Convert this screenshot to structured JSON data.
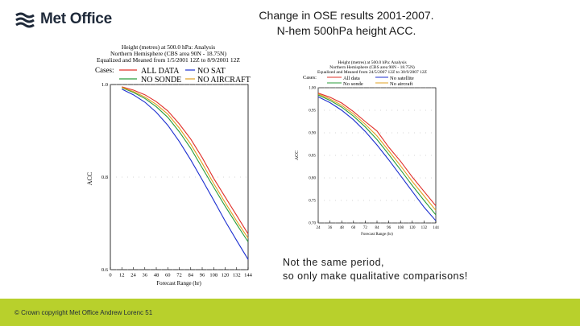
{
  "logo": {
    "text": "Met Office"
  },
  "title": {
    "line1": "Change in OSE results 2001-2007.",
    "line2": "N-hem 500hPa height ACC."
  },
  "note": {
    "line1": "Not the same period,",
    "line2": "so only make qualitative comparisons!"
  },
  "footer": {
    "text": "© Crown copyright   Met Office  Andrew Lorenc  51"
  },
  "colors": {
    "footer_bg": "#b8d02c",
    "all_data": "#e0302a",
    "no_sat": "#1c2fd0",
    "no_sonde": "#2a9e3a",
    "no_aircraft": "#e0a020"
  },
  "chart_data": [
    {
      "type": "line",
      "header": [
        "Height (metres) at 500.0 hPa:  Analysis",
        "Northern Hemisphere (CBS area 90N - 18.75N)",
        "Equalized and Meaned from 1/5/2001 12Z to 8/9/2001 12Z"
      ],
      "legend_title": "Cases:",
      "ylabel": "ACC",
      "xlabel": "Forecast Range (hr)",
      "xticks": [
        "0",
        "12",
        "24",
        "36",
        "48",
        "60",
        "72",
        "84",
        "96",
        "108",
        "120",
        "132",
        "144"
      ],
      "yticks": [
        "1.0",
        "0.8",
        "0.6"
      ],
      "xlim": [
        0,
        144
      ],
      "ylim": [
        0.6,
        1.0
      ],
      "series": [
        {
          "name": "ALL DATA",
          "color": "#e0302a",
          "x": [
            12,
            24,
            36,
            48,
            60,
            72,
            84,
            96,
            108,
            120,
            132,
            144
          ],
          "y": [
            0.995,
            0.988,
            0.978,
            0.963,
            0.943,
            0.915,
            0.882,
            0.842,
            0.797,
            0.757,
            0.717,
            0.677
          ]
        },
        {
          "name": "NO SAT",
          "color": "#1c2fd0",
          "x": [
            12,
            24,
            36,
            48,
            60,
            72,
            84,
            96,
            108,
            120,
            132,
            144
          ],
          "y": [
            0.99,
            0.978,
            0.962,
            0.94,
            0.912,
            0.877,
            0.837,
            0.794,
            0.75,
            0.705,
            0.663,
            0.622
          ]
        },
        {
          "name": "NO SONDE",
          "color": "#2a9e3a",
          "x": [
            12,
            24,
            36,
            48,
            60,
            72,
            84,
            96,
            108,
            120,
            132,
            144
          ],
          "y": [
            0.993,
            0.983,
            0.97,
            0.952,
            0.929,
            0.898,
            0.862,
            0.82,
            0.778,
            0.737,
            0.698,
            0.66
          ]
        },
        {
          "name": "NO AIRCRAFT",
          "color": "#e0a020",
          "x": [
            12,
            24,
            36,
            48,
            60,
            72,
            84,
            96,
            108,
            120,
            132,
            144
          ],
          "y": [
            0.994,
            0.985,
            0.973,
            0.957,
            0.936,
            0.906,
            0.871,
            0.83,
            0.786,
            0.745,
            0.705,
            0.668
          ]
        }
      ]
    },
    {
      "type": "line",
      "header": [
        "Height (metres) at 500.0 hPa:  Analysis",
        "Northern Hemisphere (CBS area 90N - 18.75N)",
        "Equalized and Meaned from 24/5/2007 12Z to 30/9/2007 12Z"
      ],
      "legend_title": "Cases:",
      "ylabel": "ACC",
      "xlabel": "Forecast Range (hr)",
      "xticks": [
        "24",
        "36",
        "48",
        "60",
        "72",
        "84",
        "96",
        "108",
        "120",
        "132",
        "144"
      ],
      "yticks": [
        "1.00",
        "0.95",
        "0.90",
        "0.85",
        "0.80",
        "0.75",
        "0.70"
      ],
      "xlim": [
        24,
        144
      ],
      "ylim": [
        0.7,
        1.0
      ],
      "series": [
        {
          "name": "All data",
          "color": "#e0302a",
          "x": [
            24,
            36,
            48,
            60,
            72,
            84,
            96,
            108,
            120,
            132,
            144
          ],
          "y": [
            0.988,
            0.979,
            0.966,
            0.947,
            0.925,
            0.904,
            0.868,
            0.837,
            0.802,
            0.77,
            0.738
          ]
        },
        {
          "name": "No satellite",
          "color": "#1c2fd0",
          "x": [
            24,
            36,
            48,
            60,
            72,
            84,
            96,
            108,
            120,
            132,
            144
          ],
          "y": [
            0.98,
            0.967,
            0.95,
            0.929,
            0.903,
            0.873,
            0.84,
            0.805,
            0.77,
            0.735,
            0.705
          ]
        },
        {
          "name": "No sonde",
          "color": "#2a9e3a",
          "x": [
            24,
            36,
            48,
            60,
            72,
            84,
            96,
            108,
            120,
            132,
            144
          ],
          "y": [
            0.984,
            0.972,
            0.957,
            0.937,
            0.913,
            0.885,
            0.852,
            0.818,
            0.783,
            0.75,
            0.718
          ]
        },
        {
          "name": "No aircraft",
          "color": "#e0a020",
          "x": [
            24,
            36,
            48,
            60,
            72,
            84,
            96,
            108,
            120,
            132,
            144
          ],
          "y": [
            0.986,
            0.975,
            0.961,
            0.942,
            0.919,
            0.893,
            0.86,
            0.827,
            0.792,
            0.76,
            0.728
          ]
        }
      ]
    }
  ]
}
